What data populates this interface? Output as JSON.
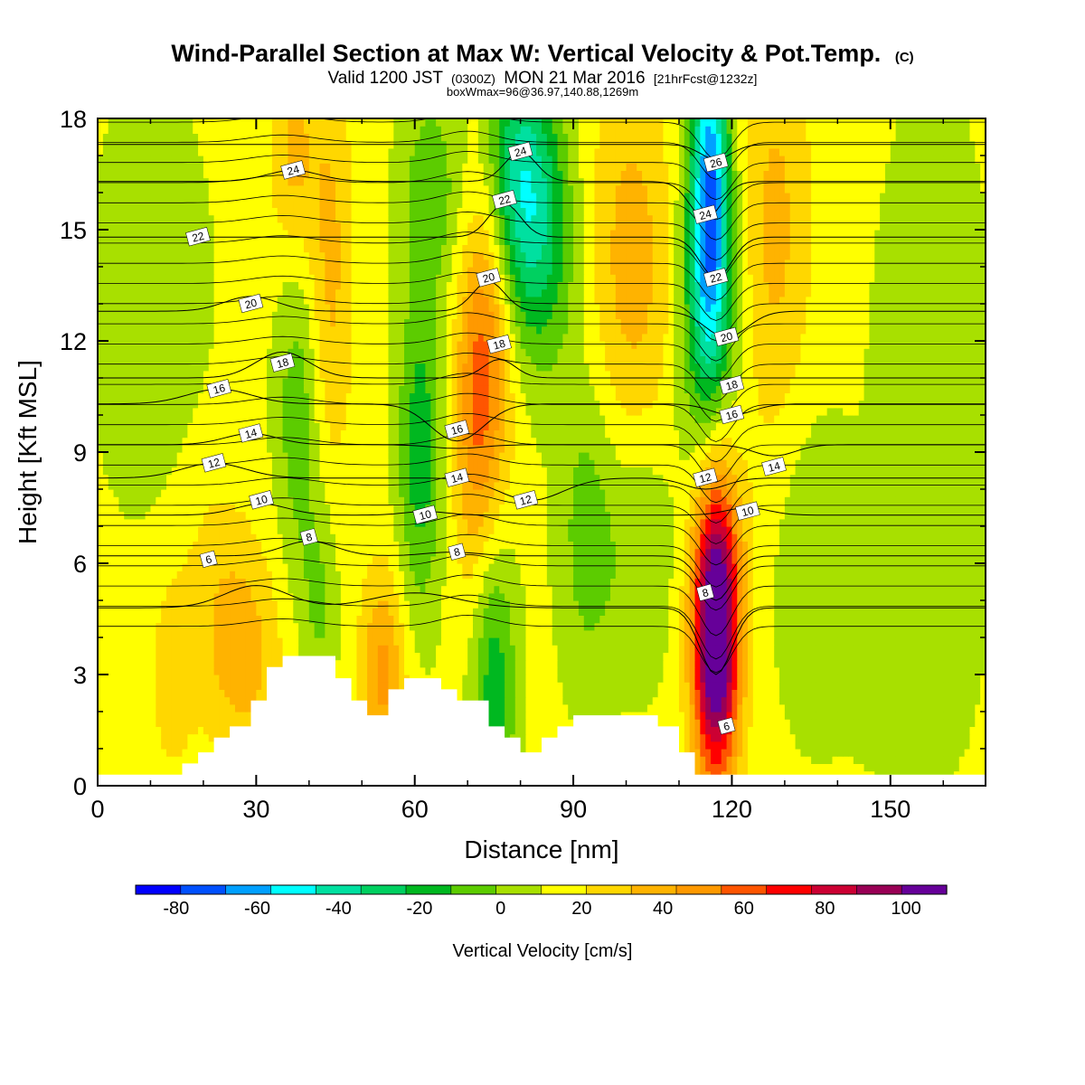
{
  "title": "Wind-Parallel Section at Max W: Vertical Velocity & Pot.Temp.",
  "title_mark": "(C)",
  "subtitle": {
    "valid": "Valid 1200 JST",
    "zulu": "(0300Z)",
    "date": "MON 21 Mar 2016",
    "forecast": "[21hrFcst@1232z]"
  },
  "box_info": "boxWmax=96@36.97,140.88,1269m",
  "chart_data": {
    "type": "heatmap",
    "xlabel": "Distance [nm]",
    "ylabel": "Height [Kft MSL]",
    "xlim": [
      0,
      168
    ],
    "ylim": [
      0,
      18
    ],
    "x_ticks": [
      "0",
      "30",
      "60",
      "90",
      "120",
      "150"
    ],
    "y_ticks": [
      "0",
      "3",
      "6",
      "9",
      "12",
      "15",
      "18"
    ],
    "colorbar": {
      "label": "Vertical Velocity [cm/s]",
      "bounds": [
        -90,
        -80,
        -70,
        -60,
        -50,
        -40,
        -30,
        -20,
        -10,
        0,
        10,
        20,
        30,
        40,
        50,
        60,
        70,
        80,
        90,
        100,
        110
      ],
      "colors": [
        "#0000ff",
        "#0050ff",
        "#00a0ff",
        "#00ffff",
        "#00e0a0",
        "#00d060",
        "#00b820",
        "#5ccc00",
        "#a8e000",
        "#ffff00",
        "#ffd700",
        "#ffb300",
        "#ff9900",
        "#ff5500",
        "#ff0000",
        "#cc0033",
        "#990055",
        "#660099"
      ],
      "tick_labels": [
        "-80",
        "-60",
        "-40",
        "-20",
        "0",
        "20",
        "40",
        "60",
        "80",
        "100"
      ],
      "tick_values": [
        -80,
        -60,
        -40,
        -20,
        0,
        20,
        40,
        60,
        80,
        100
      ]
    },
    "background_value": 3,
    "features": [
      {
        "x": 117,
        "y": 4.0,
        "sx": 3.0,
        "sy": 2.7,
        "w": 100
      },
      {
        "x": 118,
        "y": 7.5,
        "sx": 4.0,
        "sy": 3.0,
        "w": 20
      },
      {
        "x": 116,
        "y": 15.5,
        "sx": 2.5,
        "sy": 3.5,
        "w": -70
      },
      {
        "x": 113,
        "y": 13.0,
        "sx": 3.0,
        "sy": 4.0,
        "w": -20
      },
      {
        "x": 120,
        "y": 11.0,
        "sx": 3.0,
        "sy": 4.0,
        "w": -15
      },
      {
        "x": 79,
        "y": 16.5,
        "sx": 5.0,
        "sy": 2.5,
        "w": -45
      },
      {
        "x": 84,
        "y": 14.5,
        "sx": 5.0,
        "sy": 2.5,
        "w": -25
      },
      {
        "x": 74,
        "y": 12.5,
        "sx": 3.5,
        "sy": 4.0,
        "w": 35
      },
      {
        "x": 71,
        "y": 9.5,
        "sx": 3.0,
        "sy": 3.0,
        "w": 20
      },
      {
        "x": 101,
        "y": 14.0,
        "sx": 6.0,
        "sy": 4.0,
        "w": 22
      },
      {
        "x": 128,
        "y": 15.0,
        "sx": 5.0,
        "sy": 4.0,
        "w": 20
      },
      {
        "x": 63,
        "y": 16.0,
        "sx": 4.0,
        "sy": 2.0,
        "w": -20
      },
      {
        "x": 61,
        "y": 9.0,
        "sx": 3.0,
        "sy": 3.0,
        "w": -30
      },
      {
        "x": 75,
        "y": 3.0,
        "sx": 3.0,
        "sy": 3.0,
        "w": -30
      },
      {
        "x": 38,
        "y": 10.0,
        "sx": 3.0,
        "sy": 3.0,
        "w": -20
      },
      {
        "x": 42,
        "y": 5.0,
        "sx": 2.5,
        "sy": 2.0,
        "w": -15
      },
      {
        "x": 44,
        "y": 14.0,
        "sx": 3.0,
        "sy": 4.0,
        "w": 20
      },
      {
        "x": 37,
        "y": 17.0,
        "sx": 3.0,
        "sy": 2.0,
        "w": 20
      },
      {
        "x": 54,
        "y": 3.0,
        "sx": 3.0,
        "sy": 2.0,
        "w": 30
      },
      {
        "x": 28,
        "y": 3.5,
        "sx": 5.0,
        "sy": 2.0,
        "w": 20
      },
      {
        "x": 22,
        "y": 5.5,
        "sx": 5.0,
        "sy": 2.5,
        "w": 10
      },
      {
        "x": 14,
        "y": 3.0,
        "sx": 3.0,
        "sy": 2.0,
        "w": 12
      },
      {
        "x": 93,
        "y": 7.0,
        "sx": 4.0,
        "sy": 3.0,
        "w": -20
      },
      {
        "x": 103,
        "y": 6.5,
        "sx": 4.0,
        "sy": 2.5,
        "w": -15
      },
      {
        "x": 135,
        "y": 6.0,
        "sx": 5.0,
        "sy": 3.0,
        "w": -12
      },
      {
        "x": 158,
        "y": 10.0,
        "sx": 8.0,
        "sy": 6.0,
        "w": -10
      },
      {
        "x": 10,
        "y": 13.0,
        "sx": 8.0,
        "sy": 4.0,
        "w": -10
      },
      {
        "x": 150,
        "y": 3.0,
        "sx": 8.0,
        "sy": 2.0,
        "w": -5
      }
    ],
    "terrain": [
      [
        0,
        0.3
      ],
      [
        16,
        0.3
      ],
      [
        16,
        0.6
      ],
      [
        19,
        0.6
      ],
      [
        19,
        0.9
      ],
      [
        22,
        0.9
      ],
      [
        22,
        1.3
      ],
      [
        25,
        1.3
      ],
      [
        25,
        1.6
      ],
      [
        29,
        1.6
      ],
      [
        29,
        2.3
      ],
      [
        32,
        2.3
      ],
      [
        32,
        3.2
      ],
      [
        35,
        3.2
      ],
      [
        35,
        3.5
      ],
      [
        45,
        3.5
      ],
      [
        45,
        2.9
      ],
      [
        48,
        2.9
      ],
      [
        48,
        2.3
      ],
      [
        51,
        2.3
      ],
      [
        51,
        1.9
      ],
      [
        55,
        1.9
      ],
      [
        55,
        2.6
      ],
      [
        58,
        2.6
      ],
      [
        58,
        2.9
      ],
      [
        65,
        2.9
      ],
      [
        65,
        2.6
      ],
      [
        68,
        2.6
      ],
      [
        68,
        2.3
      ],
      [
        74,
        2.3
      ],
      [
        74,
        1.6
      ],
      [
        77,
        1.6
      ],
      [
        77,
        1.3
      ],
      [
        80,
        1.3
      ],
      [
        80,
        0.9
      ],
      [
        84,
        0.9
      ],
      [
        84,
        1.3
      ],
      [
        87,
        1.3
      ],
      [
        87,
        1.6
      ],
      [
        90,
        1.6
      ],
      [
        90,
        1.9
      ],
      [
        106,
        1.9
      ],
      [
        106,
        1.6
      ],
      [
        110,
        1.6
      ],
      [
        110,
        0.9
      ],
      [
        113,
        0.9
      ],
      [
        113,
        0.3
      ],
      [
        168,
        0.3
      ]
    ],
    "contours": [
      {
        "label": "6",
        "y0": 4.8,
        "bumps": [
          [
            30,
            0.6,
            6
          ],
          [
            60,
            0.4,
            8
          ],
          [
            117,
            -1.8,
            3
          ]
        ],
        "labels_at": [
          [
            21,
            6.1
          ],
          [
            119,
            1.6
          ]
        ]
      },
      {
        "label": "8",
        "y0": 6.2,
        "bumps": [
          [
            40,
            0.4,
            5
          ],
          [
            67,
            0.1,
            5
          ],
          [
            117,
            -1.2,
            3
          ]
        ],
        "labels_at": [
          [
            40,
            6.7
          ],
          [
            68,
            6.3
          ],
          [
            115,
            5.2
          ]
        ]
      },
      {
        "label": "10",
        "y0": 7.3,
        "bumps": [
          [
            31,
            0.3,
            5
          ],
          [
            62,
            0.1,
            4
          ],
          [
            123,
            0.2,
            4
          ]
        ],
        "labels_at": [
          [
            31,
            7.7
          ],
          [
            62,
            7.3
          ],
          [
            123,
            7.4
          ]
        ]
      },
      {
        "label": "12",
        "y0": 8.3,
        "bumps": [
          [
            22,
            0.4,
            6
          ],
          [
            82,
            -0.6,
            6
          ],
          [
            115,
            -0.3,
            4
          ]
        ],
        "labels_at": [
          [
            22,
            8.7
          ],
          [
            81,
            7.7
          ],
          [
            115,
            8.3
          ]
        ]
      },
      {
        "label": "14",
        "y0": 9.2,
        "bumps": [
          [
            29,
            0.3,
            5
          ],
          [
            68,
            -0.1,
            5
          ],
          [
            128,
            -0.3,
            4
          ]
        ],
        "labels_at": [
          [
            29,
            9.5
          ],
          [
            68,
            8.3
          ],
          [
            128,
            8.6
          ]
        ]
      },
      {
        "label": "16",
        "y0": 10.3,
        "bumps": [
          [
            23,
            0.4,
            6
          ],
          [
            68,
            -1.0,
            5
          ],
          [
            120,
            -0.3,
            4
          ]
        ],
        "labels_at": [
          [
            23,
            10.7
          ],
          [
            68,
            9.6
          ],
          [
            120,
            10.0
          ]
        ]
      },
      {
        "label": "18",
        "y0": 11.0,
        "bumps": [
          [
            35,
            0.7,
            5
          ],
          [
            76,
            0.5,
            3
          ],
          [
            120,
            0.0,
            4
          ]
        ],
        "labels_at": [
          [
            35,
            11.4
          ],
          [
            76,
            11.9
          ],
          [
            120,
            10.8
          ]
        ]
      },
      {
        "label": "20",
        "y0": 12.8,
        "bumps": [
          [
            29,
            0.4,
            5
          ],
          [
            74,
            0.8,
            3
          ],
          [
            119,
            -0.7,
            4
          ]
        ],
        "labels_at": [
          [
            29,
            13.0
          ],
          [
            74,
            13.7
          ],
          [
            119,
            12.1
          ]
        ]
      },
      {
        "label": "22",
        "y0": 14.8,
        "bumps": [
          [
            19,
            0.0,
            6
          ],
          [
            77,
            0.9,
            3
          ],
          [
            117,
            -1.1,
            3
          ]
        ],
        "labels_at": [
          [
            19,
            14.8
          ],
          [
            77,
            15.8
          ],
          [
            117,
            13.7
          ]
        ]
      },
      {
        "label": "24",
        "y0": 16.3,
        "bumps": [
          [
            37,
            0.3,
            5
          ],
          [
            80,
            0.8,
            3
          ],
          [
            115,
            -1.0,
            3
          ]
        ],
        "labels_at": [
          [
            37,
            16.6
          ],
          [
            80,
            17.1
          ],
          [
            115,
            15.4
          ]
        ]
      },
      {
        "label": "26",
        "y0": 17.3,
        "bumps": [
          [
            117,
            -0.4,
            3
          ]
        ],
        "labels_at": [
          [
            117,
            16.8
          ]
        ]
      }
    ],
    "extra_contour_count": 26,
    "extra_contour_range": [
      4.3,
      17.9
    ]
  }
}
